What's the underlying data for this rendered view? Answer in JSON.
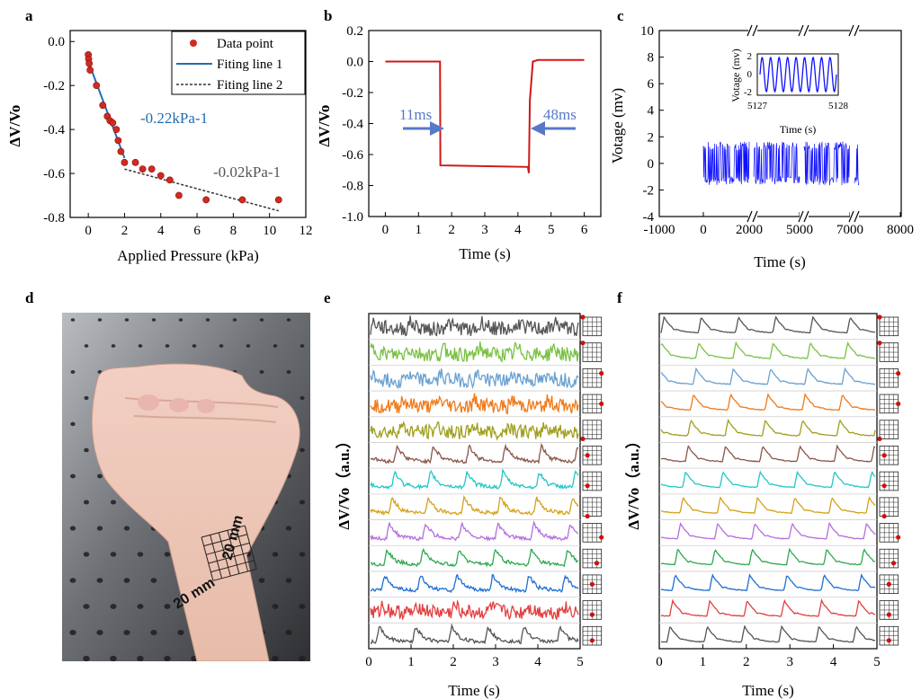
{
  "panels": {
    "a": {
      "label": "a"
    },
    "b": {
      "label": "b"
    },
    "c": {
      "label": "c"
    },
    "d": {
      "label": "d",
      "photo_text": {
        "width": "20 mm",
        "height": "20 mm"
      }
    },
    "e": {
      "label": "e"
    },
    "f": {
      "label": "f"
    }
  },
  "colors": {
    "a_points": "#d22a1f",
    "a_fit1": "#1f6eb3",
    "a_fit2": "#333333",
    "b_line": "#d01818",
    "b_arrow": "#5878c8",
    "c_signal": "#1010ff",
    "grid_marker": "#cc1111",
    "traces": [
      "#555555",
      "#7ac143",
      "#6aa0d0",
      "#f07a1a",
      "#a0a020",
      "#8b5548",
      "#22c7c7",
      "#d4a21a",
      "#b56ee0",
      "#2fa84f",
      "#1f6fd0",
      "#e04040",
      "#555555"
    ]
  },
  "chart_data": [
    {
      "panel": "a",
      "type": "scatter",
      "xlabel": "Applied Pressure (kPa)",
      "ylabel": "ΔV/Vo",
      "xlim": [
        -1,
        12
      ],
      "ylim": [
        -0.8,
        0.05
      ],
      "xticks": [
        "0",
        "2",
        "4",
        "6",
        "8",
        "10",
        "12"
      ],
      "yticks": [
        "0.0",
        "-0.2",
        "-0.4",
        "-0.6",
        "-0.8"
      ],
      "legend": {
        "placement": "top-right",
        "entries": [
          "Data point",
          "Fiting line 1",
          "Fiting line 2"
        ]
      },
      "points": {
        "x": [
          0,
          0.02,
          0.05,
          0.1,
          0.45,
          0.8,
          1.05,
          1.2,
          1.35,
          1.55,
          1.65,
          1.8,
          2.0,
          2.6,
          3.0,
          3.5,
          4.0,
          4.5,
          5.0,
          6.5,
          8.5,
          10.5
        ],
        "y": [
          -0.06,
          -0.08,
          -0.1,
          -0.13,
          -0.2,
          -0.29,
          -0.34,
          -0.36,
          -0.37,
          -0.4,
          -0.45,
          -0.5,
          -0.55,
          -0.55,
          -0.58,
          -0.58,
          -0.61,
          -0.63,
          -0.7,
          -0.72,
          -0.72,
          -0.72
        ]
      },
      "fit_lines": [
        {
          "name": "Fiting line 1",
          "x": [
            0,
            2.0
          ],
          "y": [
            -0.09,
            -0.53
          ]
        },
        {
          "name": "Fiting line 2",
          "x": [
            2.0,
            10.5
          ],
          "y": [
            -0.58,
            -0.77
          ]
        }
      ],
      "annotations": [
        "-0.22kPa-1",
        "-0.02kPa-1"
      ]
    },
    {
      "panel": "b",
      "type": "line",
      "xlabel": "Time (s)",
      "ylabel": "ΔV/Vo",
      "xlim": [
        -0.5,
        6.5
      ],
      "ylim": [
        -1.0,
        0.2
      ],
      "xticks": [
        "0",
        "1",
        "2",
        "3",
        "4",
        "5",
        "6"
      ],
      "yticks": [
        "0.2",
        "0.0",
        "-0.2",
        "-0.4",
        "-0.6",
        "-0.8",
        "-1.0"
      ],
      "x": [
        0,
        1.6,
        1.65,
        1.66,
        4.3,
        4.33,
        4.36,
        4.45,
        4.6,
        6.0
      ],
      "y": [
        0.0,
        0.0,
        0.0,
        -0.67,
        -0.68,
        -0.72,
        -0.25,
        0.0,
        0.01,
        0.01
      ],
      "annotations": [
        "11ms",
        "48ms"
      ]
    },
    {
      "panel": "c",
      "type": "line",
      "xlabel": "Time (s)",
      "ylabel": "Votage (mv)",
      "xticks": [
        "-1000",
        "0",
        "2000",
        "5000",
        "7000",
        "8000"
      ],
      "yticks": [
        "10",
        "8",
        "6",
        "4",
        "2",
        "0",
        "-2",
        "-4"
      ],
      "ylim": [
        -4,
        10
      ],
      "axis_breaks": true,
      "signal": {
        "center": 0,
        "amplitude": 1.5,
        "segments": [
          [
            0,
            2000
          ],
          [
            2000,
            5000
          ],
          [
            5000,
            7000
          ],
          [
            7000,
            7100
          ]
        ]
      },
      "inset": {
        "xlabel": "Time (s)",
        "ylabel": "Votage (mv)",
        "xticks": [
          "5127",
          "5128"
        ],
        "yticks": [
          "2",
          "0",
          "-2"
        ],
        "ylim": [
          -2,
          2
        ],
        "cycles": 9
      }
    },
    {
      "panel": "e",
      "type": "line",
      "xlabel": "Time (s)",
      "ylabel": "ΔV/Vo（a.u.）",
      "xticks": [
        "0",
        "1",
        "2",
        "3",
        "4",
        "5"
      ],
      "xlim": [
        0,
        5
      ],
      "n_channels": 13,
      "sensor_positions": [
        [
          0,
          0
        ],
        [
          0,
          0
        ],
        [
          4,
          1
        ],
        [
          4,
          2
        ],
        [
          0,
          4
        ],
        [
          1,
          2
        ],
        [
          1,
          3
        ],
        [
          1,
          4
        ],
        [
          4,
          3
        ],
        [
          3,
          3
        ],
        [
          2,
          2
        ],
        [
          2,
          3
        ],
        [
          2,
          3
        ]
      ]
    },
    {
      "panel": "f",
      "type": "line",
      "xlabel": "Time (s)",
      "ylabel": "ΔV/Vo（a.u.）",
      "xticks": [
        "0",
        "1",
        "2",
        "3",
        "4",
        "5"
      ],
      "xlim": [
        0,
        5
      ],
      "n_channels": 13,
      "sensor_positions": [
        [
          0,
          0
        ],
        [
          0,
          0
        ],
        [
          4,
          1
        ],
        [
          4,
          2
        ],
        [
          0,
          4
        ],
        [
          1,
          2
        ],
        [
          1,
          3
        ],
        [
          1,
          4
        ],
        [
          4,
          3
        ],
        [
          3,
          3
        ],
        [
          2,
          2
        ],
        [
          2,
          3
        ],
        [
          2,
          3
        ]
      ]
    }
  ]
}
